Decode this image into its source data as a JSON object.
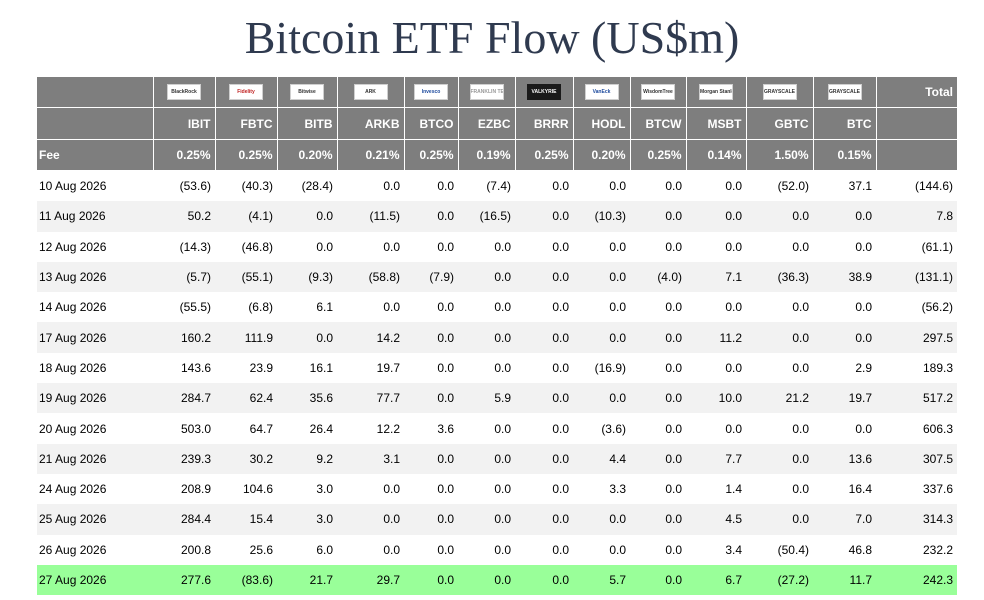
{
  "title": "Bitcoin ETF Flow (US$m)",
  "logos": [
    {
      "name": "blackrock-logo",
      "text": "BlackRock",
      "style": "plain"
    },
    {
      "name": "fidelity-logo",
      "text": "Fidelity",
      "style": "red"
    },
    {
      "name": "bitwise-logo",
      "text": "Bitwise",
      "style": "plain"
    },
    {
      "name": "ark-logo",
      "text": "ARK",
      "style": "plain"
    },
    {
      "name": "invesco-logo",
      "text": "Invesco",
      "style": "blue"
    },
    {
      "name": "franklin-logo",
      "text": "FRANKLIN TEMPLETON",
      "style": "light"
    },
    {
      "name": "valkyrie-logo",
      "text": "VALKYRIE",
      "style": "dark"
    },
    {
      "name": "vaneck-logo",
      "text": "VanEck",
      "style": "blue"
    },
    {
      "name": "wisdomtree-logo",
      "text": "WisdomTree",
      "style": "plain"
    },
    {
      "name": "morganstanley-logo",
      "text": "Morgan Stanley",
      "style": "plain"
    },
    {
      "name": "grayscale-logo-gbtc",
      "text": "GRAYSCALE",
      "style": "plain"
    },
    {
      "name": "grayscale-logo-btc",
      "text": "GRAYSCALE",
      "style": "plain"
    }
  ],
  "total_label": "Total",
  "tickers": [
    "IBIT",
    "FBTC",
    "BITB",
    "ARKB",
    "BTCO",
    "EZBC",
    "BRRR",
    "HODL",
    "BTCW",
    "MSBT",
    "GBTC",
    "BTC"
  ],
  "fee_label": "Fee",
  "fees": [
    "0.25%",
    "0.25%",
    "0.20%",
    "0.21%",
    "0.25%",
    "0.19%",
    "0.25%",
    "0.20%",
    "0.25%",
    "0.14%",
    "1.50%",
    "0.15%"
  ],
  "rows": [
    {
      "date": "10 Aug 2026",
      "values": [
        "(53.6)",
        "(40.3)",
        "(28.4)",
        "0.0",
        "0.0",
        "(7.4)",
        "0.0",
        "0.0",
        "0.0",
        "0.0",
        "(52.0)",
        "37.1"
      ],
      "total": "(144.6)"
    },
    {
      "date": "11 Aug 2026",
      "values": [
        "50.2",
        "(4.1)",
        "0.0",
        "(11.5)",
        "0.0",
        "(16.5)",
        "0.0",
        "(10.3)",
        "0.0",
        "0.0",
        "0.0",
        "0.0"
      ],
      "total": "7.8"
    },
    {
      "date": "12 Aug 2026",
      "values": [
        "(14.3)",
        "(46.8)",
        "0.0",
        "0.0",
        "0.0",
        "0.0",
        "0.0",
        "0.0",
        "0.0",
        "0.0",
        "0.0",
        "0.0"
      ],
      "total": "(61.1)"
    },
    {
      "date": "13 Aug 2026",
      "values": [
        "(5.7)",
        "(55.1)",
        "(9.3)",
        "(58.8)",
        "(7.9)",
        "0.0",
        "0.0",
        "0.0",
        "(4.0)",
        "7.1",
        "(36.3)",
        "38.9"
      ],
      "total": "(131.1)"
    },
    {
      "date": "14 Aug 2026",
      "values": [
        "(55.5)",
        "(6.8)",
        "6.1",
        "0.0",
        "0.0",
        "0.0",
        "0.0",
        "0.0",
        "0.0",
        "0.0",
        "0.0",
        "0.0"
      ],
      "total": "(56.2)"
    },
    {
      "date": "17 Aug 2026",
      "values": [
        "160.2",
        "111.9",
        "0.0",
        "14.2",
        "0.0",
        "0.0",
        "0.0",
        "0.0",
        "0.0",
        "11.2",
        "0.0",
        "0.0"
      ],
      "total": "297.5"
    },
    {
      "date": "18 Aug 2026",
      "values": [
        "143.6",
        "23.9",
        "16.1",
        "19.7",
        "0.0",
        "0.0",
        "0.0",
        "(16.9)",
        "0.0",
        "0.0",
        "0.0",
        "2.9"
      ],
      "total": "189.3"
    },
    {
      "date": "19 Aug 2026",
      "values": [
        "284.7",
        "62.4",
        "35.6",
        "77.7",
        "0.0",
        "5.9",
        "0.0",
        "0.0",
        "0.0",
        "10.0",
        "21.2",
        "19.7"
      ],
      "total": "517.2"
    },
    {
      "date": "20 Aug 2026",
      "values": [
        "503.0",
        "64.7",
        "26.4",
        "12.2",
        "3.6",
        "0.0",
        "0.0",
        "(3.6)",
        "0.0",
        "0.0",
        "0.0",
        "0.0"
      ],
      "total": "606.3"
    },
    {
      "date": "21 Aug 2026",
      "values": [
        "239.3",
        "30.2",
        "9.2",
        "3.1",
        "0.0",
        "0.0",
        "0.0",
        "4.4",
        "0.0",
        "7.7",
        "0.0",
        "13.6"
      ],
      "total": "307.5"
    },
    {
      "date": "24 Aug 2026",
      "values": [
        "208.9",
        "104.6",
        "3.0",
        "0.0",
        "0.0",
        "0.0",
        "0.0",
        "3.3",
        "0.0",
        "1.4",
        "0.0",
        "16.4"
      ],
      "total": "337.6"
    },
    {
      "date": "25 Aug 2026",
      "values": [
        "284.4",
        "15.4",
        "3.0",
        "0.0",
        "0.0",
        "0.0",
        "0.0",
        "0.0",
        "0.0",
        "4.5",
        "0.0",
        "7.0"
      ],
      "total": "314.3"
    },
    {
      "date": "26 Aug 2026",
      "values": [
        "200.8",
        "25.6",
        "6.0",
        "0.0",
        "0.0",
        "0.0",
        "0.0",
        "0.0",
        "0.0",
        "3.4",
        "(50.4)",
        "46.8"
      ],
      "total": "232.2"
    },
    {
      "date": "27 Aug 2026",
      "values": [
        "277.6",
        "(83.6)",
        "21.7",
        "29.7",
        "0.0",
        "0.0",
        "0.0",
        "5.7",
        "0.0",
        "6.7",
        "(27.2)",
        "11.7"
      ],
      "total": "242.3",
      "highlight": true
    }
  ],
  "colors": {
    "header_bg": "#7e7e7e",
    "negative": "#cc0000",
    "zero": "#bbbbbb",
    "highlight": "#99ff99",
    "stripe": "#f2f2f2",
    "title": "#2f3a4f"
  }
}
